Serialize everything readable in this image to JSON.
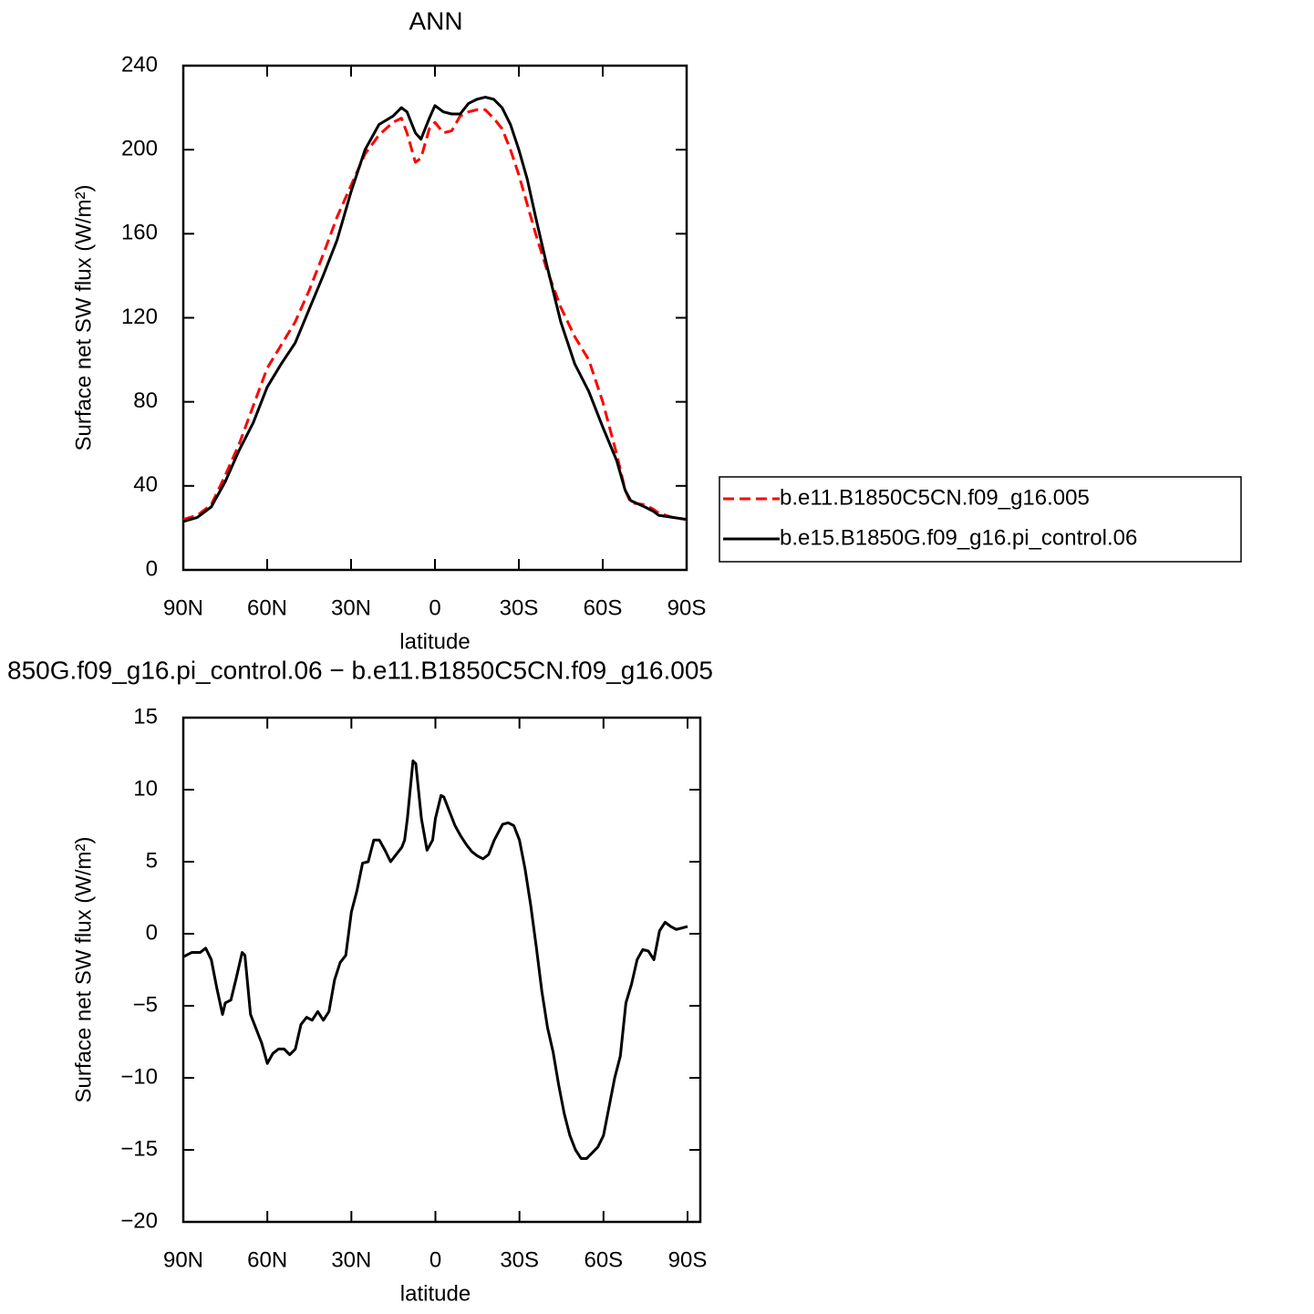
{
  "chart_data": [
    {
      "type": "line",
      "title": "ANN",
      "x_label": "latitude",
      "y_label": "Surface net SW flux (W/m²)",
      "x": [
        90,
        85,
        80,
        75,
        70,
        65,
        60,
        55,
        50,
        45,
        40,
        35,
        30,
        25,
        20,
        15,
        12,
        10,
        7,
        5,
        2,
        0,
        -3,
        -6,
        -9,
        -12,
        -15,
        -18,
        -21,
        -24,
        -27,
        -30,
        -33,
        -36,
        -40,
        -45,
        -50,
        -55,
        -60,
        -65,
        -68,
        -70,
        -75,
        -78,
        -80,
        -85,
        -90
      ],
      "series": [
        {
          "name": "b.e11.B1850C5CN.f09_g16.005",
          "color": "#ff0000",
          "line_style": "dashed",
          "values": [
            24,
            26,
            31,
            45,
            60,
            78,
            96,
            107,
            118,
            133,
            150,
            168,
            183,
            198,
            207,
            213,
            215,
            208,
            194,
            196,
            210,
            213,
            208,
            209,
            216,
            218,
            219,
            219,
            215,
            210,
            200,
            188,
            174,
            160,
            143,
            125,
            111,
            100,
            80,
            55,
            38,
            32,
            31,
            29,
            27,
            25,
            24
          ]
        },
        {
          "name": "b.e15.B1850G.f09_g16.pi_control.06",
          "color": "#000000",
          "line_style": "solid",
          "values": [
            23,
            25,
            30,
            42,
            57,
            70,
            87,
            98,
            108,
            124,
            140,
            157,
            180,
            200,
            212,
            216,
            220,
            218,
            208,
            205,
            215,
            221,
            218,
            217,
            217,
            222,
            224,
            225,
            224,
            220,
            212,
            200,
            186,
            168,
            145,
            118,
            98,
            85,
            68,
            52,
            38,
            33,
            30,
            28,
            26,
            25,
            24
          ]
        }
      ],
      "xlim": [
        90,
        -90
      ],
      "xticks": [
        {
          "value": 90,
          "label": "90N"
        },
        {
          "value": 60,
          "label": "60N"
        },
        {
          "value": 30,
          "label": "30N"
        },
        0,
        {
          "value": -30,
          "label": "30S"
        },
        {
          "value": -60,
          "label": "60S"
        },
        {
          "value": -90,
          "label": "90S"
        }
      ],
      "ylim": [
        0,
        240
      ],
      "yticks": [
        0,
        40,
        80,
        120,
        160,
        200,
        240
      ],
      "legend": "right"
    },
    {
      "type": "line",
      "title": "850G.f09_g16.pi_control.06 − b.e11.B1850C5CN.f09_g16.005",
      "x_label": "latitude",
      "y_label": "Surface net SW flux (W/m²)",
      "x": [
        90,
        87,
        84,
        82,
        80,
        78,
        76,
        75,
        73,
        71,
        69,
        68,
        66,
        64,
        62,
        60,
        58,
        56,
        54,
        52,
        50,
        48,
        46,
        44,
        42,
        40,
        38,
        36,
        34,
        32,
        30,
        28,
        26,
        24,
        22,
        20,
        18,
        16,
        14,
        12,
        11,
        10,
        8,
        7,
        5,
        3,
        1,
        0,
        -2,
        -3,
        -5,
        -7,
        -9,
        -11,
        -13,
        -15,
        -17,
        -19,
        -21,
        -24,
        -26,
        -28,
        -30,
        -32,
        -34,
        -36,
        -38,
        -40,
        -42,
        -44,
        -46,
        -48,
        -50,
        -52,
        -54,
        -56,
        -58,
        -60,
        -62,
        -64,
        -66,
        -68,
        -70,
        -72,
        -74,
        -76,
        -78,
        -80,
        -82,
        -84,
        -86,
        -88,
        -90
      ],
      "series": [
        {
          "color": "#000000",
          "line_style": "solid",
          "values": [
            -1.6,
            -1.3,
            -1.3,
            -1.0,
            -1.8,
            -3.8,
            -5.6,
            -4.8,
            -4.6,
            -3.0,
            -1.3,
            -1.5,
            -5.6,
            -6.6,
            -7.6,
            -9.0,
            -8.3,
            -8.0,
            -8.0,
            -8.4,
            -8.0,
            -6.3,
            -5.8,
            -6.0,
            -5.4,
            -6.0,
            -5.4,
            -3.2,
            -2.0,
            -1.5,
            1.5,
            3.0,
            4.9,
            5.0,
            6.5,
            6.5,
            5.8,
            5.0,
            5.5,
            6.0,
            6.5,
            8.0,
            12.0,
            11.8,
            8.0,
            5.8,
            6.5,
            8.0,
            9.6,
            9.5,
            8.5,
            7.5,
            6.8,
            6.2,
            5.7,
            5.4,
            5.2,
            5.5,
            6.5,
            7.6,
            7.7,
            7.5,
            6.5,
            4.5,
            2.0,
            -0.9,
            -4.0,
            -6.5,
            -8.2,
            -10.5,
            -12.5,
            -14.0,
            -15.0,
            -15.6,
            -15.6,
            -15.2,
            -14.8,
            -14.0,
            -12.0,
            -10.0,
            -8.5,
            -4.8,
            -3.5,
            -1.8,
            -1.1,
            -1.2,
            -1.8,
            0.2,
            0.8,
            0.5,
            0.3,
            0.4,
            0.5
          ]
        }
      ],
      "xlim": [
        90,
        -90
      ],
      "xticks": [
        {
          "value": 90,
          "label": "90N"
        },
        {
          "value": 60,
          "label": "60N"
        },
        {
          "value": 30,
          "label": "30N"
        },
        0,
        {
          "value": -30,
          "label": "30S"
        },
        {
          "value": -60,
          "label": "60S"
        },
        {
          "value": -90,
          "label": "90S"
        }
      ],
      "ylim": [
        -20,
        15
      ],
      "yticks": [
        {
          "value": -20,
          "label": "−20"
        },
        {
          "value": -15,
          "label": "−15"
        },
        {
          "value": -10,
          "label": "−10"
        },
        {
          "value": -5,
          "label": "−5"
        },
        0,
        5,
        10,
        15
      ]
    }
  ]
}
